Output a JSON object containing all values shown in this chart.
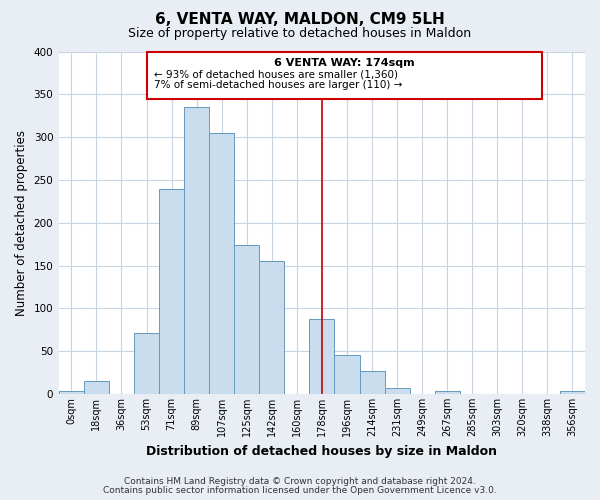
{
  "title": "6, VENTA WAY, MALDON, CM9 5LH",
  "subtitle": "Size of property relative to detached houses in Maldon",
  "xlabel": "Distribution of detached houses by size in Maldon",
  "ylabel": "Number of detached properties",
  "bar_labels": [
    "0sqm",
    "18sqm",
    "36sqm",
    "53sqm",
    "71sqm",
    "89sqm",
    "107sqm",
    "125sqm",
    "142sqm",
    "160sqm",
    "178sqm",
    "196sqm",
    "214sqm",
    "231sqm",
    "249sqm",
    "267sqm",
    "285sqm",
    "303sqm",
    "320sqm",
    "338sqm",
    "356sqm"
  ],
  "bar_values": [
    3,
    15,
    0,
    71,
    240,
    335,
    305,
    174,
    155,
    0,
    88,
    45,
    27,
    7,
    0,
    3,
    0,
    0,
    0,
    0,
    3
  ],
  "bar_color": "#c9ddef",
  "bar_edgecolor": "#6699bb",
  "vline_x_index": 10,
  "vline_color": "#cc0000",
  "annotation_title": "6 VENTA WAY: 174sqm",
  "annotation_line1": "← 93% of detached houses are smaller (1,360)",
  "annotation_line2": "7% of semi-detached houses are larger (110) →",
  "annotation_box_facecolor": "#ffffff",
  "annotation_box_edgecolor": "#cc0000",
  "ylim": [
    0,
    400
  ],
  "yticks": [
    0,
    50,
    100,
    150,
    200,
    250,
    300,
    350,
    400
  ],
  "footer1": "Contains HM Land Registry data © Crown copyright and database right 2024.",
  "footer2": "Contains public sector information licensed under the Open Government Licence v3.0.",
  "figure_bg_color": "#e8eef4",
  "plot_bg_color": "#ffffff",
  "grid_color": "#c8d4e0",
  "title_fontsize": 11,
  "subtitle_fontsize": 9,
  "ylabel_fontsize": 8.5,
  "xlabel_fontsize": 9,
  "tick_fontsize": 7,
  "footer_fontsize": 6.5
}
